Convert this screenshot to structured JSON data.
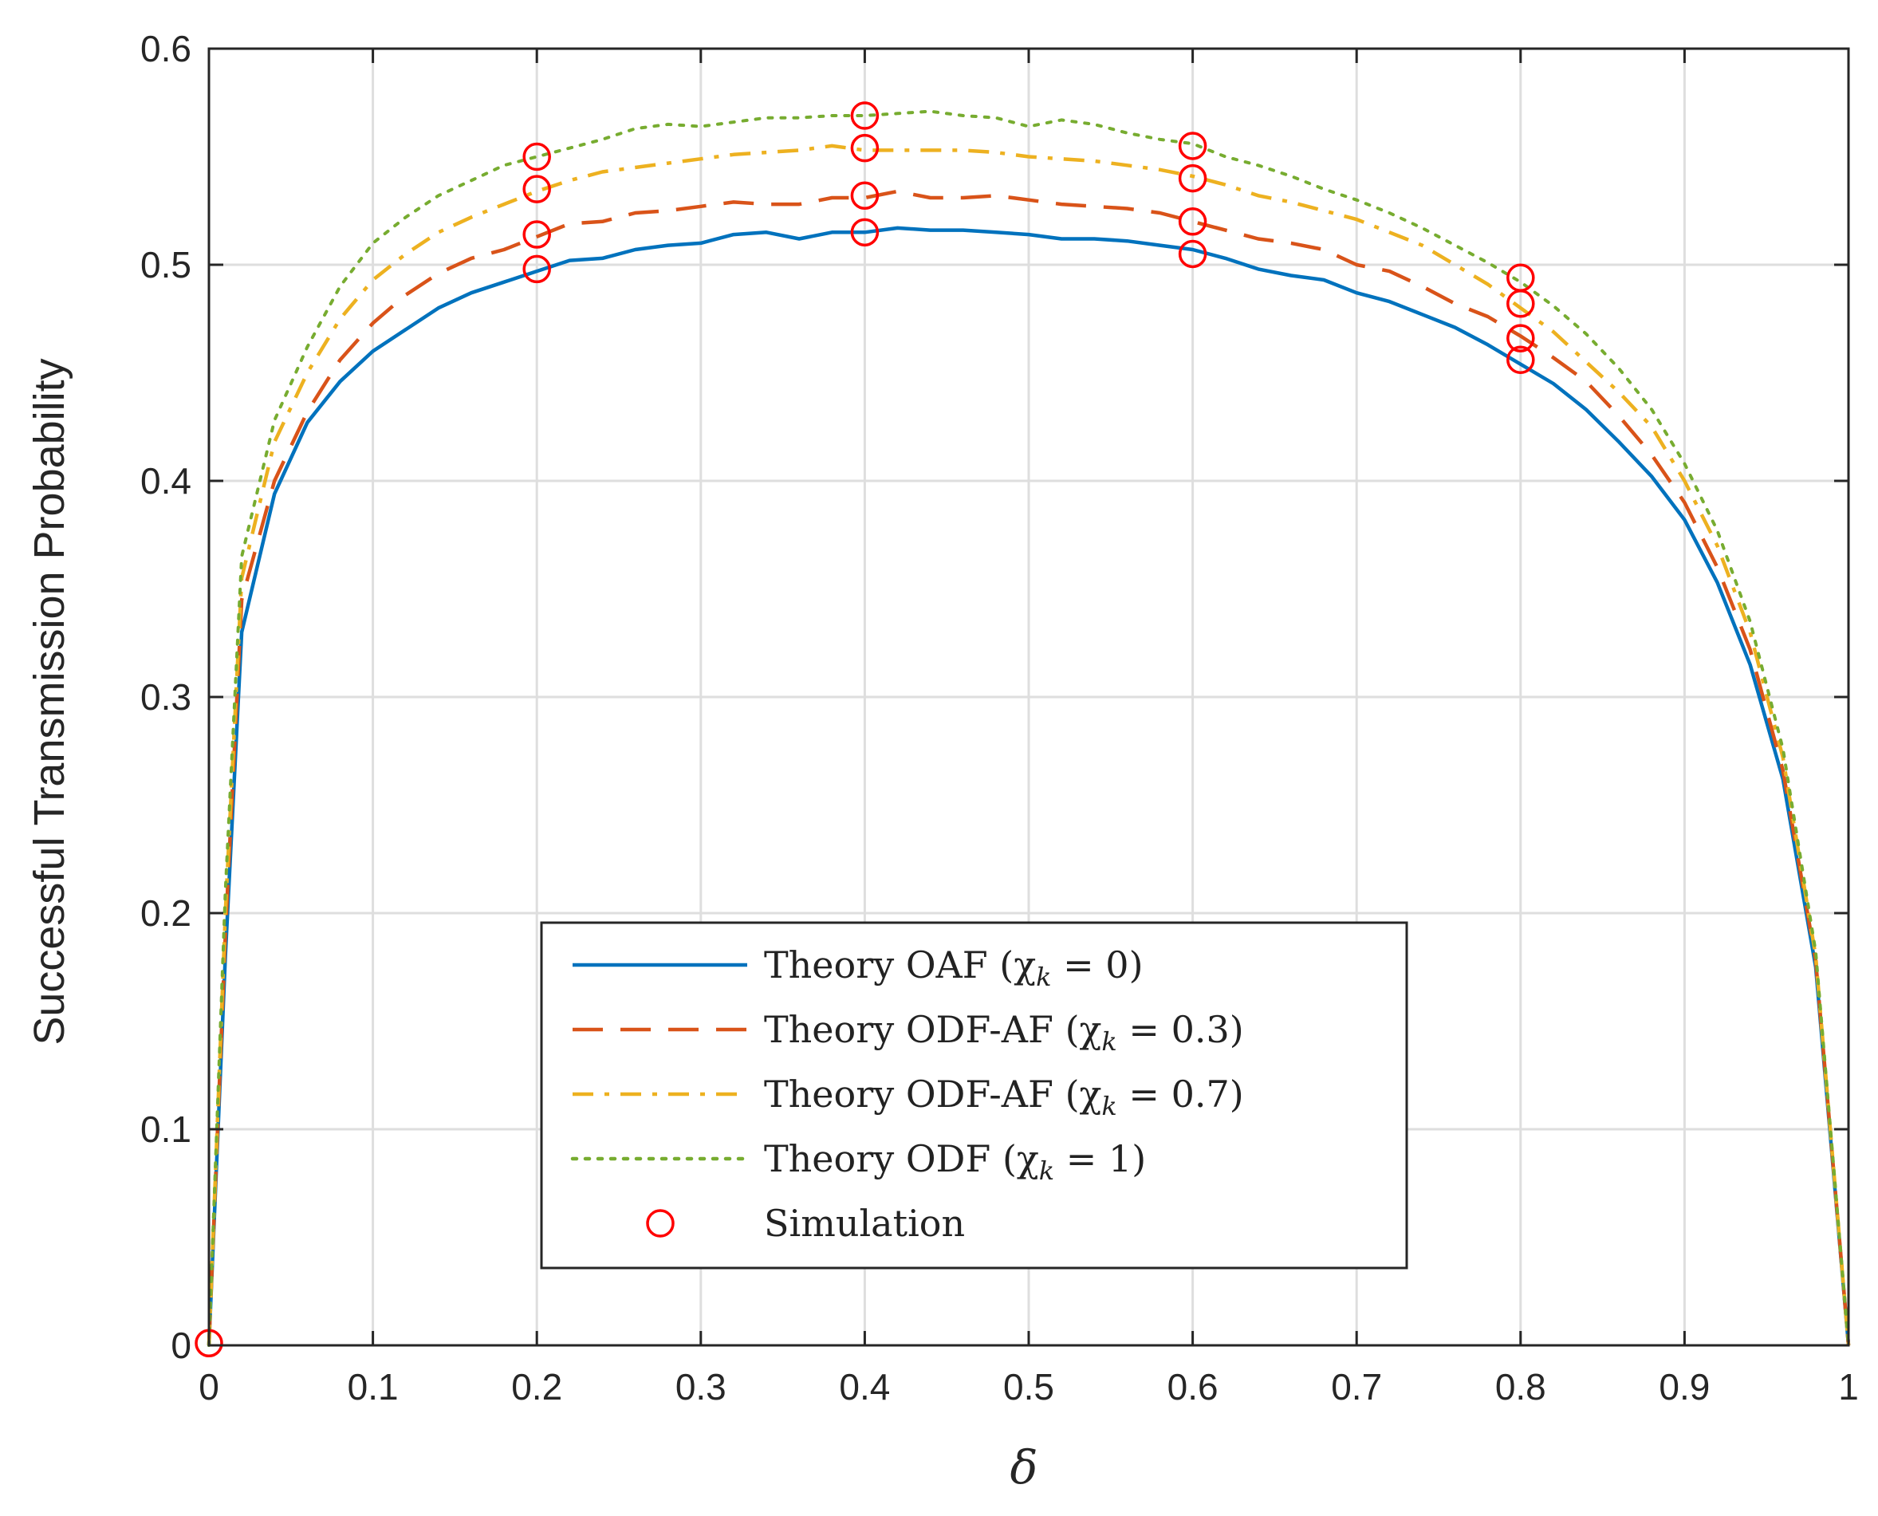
{
  "chart_data": {
    "type": "line",
    "xlabel": "δ",
    "ylabel": "Successful Transmission Probability",
    "xlim": [
      0,
      1
    ],
    "ylim": [
      0,
      0.6
    ],
    "x_ticks": [
      "0",
      "0.1",
      "0.2",
      "0.3",
      "0.4",
      "0.5",
      "0.6",
      "0.7",
      "0.8",
      "0.9",
      "1"
    ],
    "y_ticks": [
      "0",
      "0.1",
      "0.2",
      "0.3",
      "0.4",
      "0.5",
      "0.6"
    ],
    "grid": true,
    "legend_position": "lower-center",
    "series": [
      {
        "name": "Theory OAF (χk = 0)",
        "legend_main": "Theory OAF (χ",
        "legend_sub": "k",
        "legend_tail": " = 0)",
        "style": "solid",
        "color": "#0072BD",
        "x": [
          0,
          0.01,
          0.02,
          0.04,
          0.06,
          0.08,
          0.1,
          0.12,
          0.14,
          0.16,
          0.18,
          0.2,
          0.22,
          0.24,
          0.26,
          0.28,
          0.3,
          0.32,
          0.34,
          0.36,
          0.38,
          0.4,
          0.42,
          0.44,
          0.46,
          0.48,
          0.5,
          0.52,
          0.54,
          0.56,
          0.58,
          0.6,
          0.62,
          0.64,
          0.66,
          0.68,
          0.7,
          0.72,
          0.74,
          0.76,
          0.78,
          0.8,
          0.82,
          0.84,
          0.86,
          0.88,
          0.9,
          0.92,
          0.94,
          0.96,
          0.98,
          1.0
        ],
        "y": [
          0.0,
          0.18,
          0.33,
          0.394,
          0.427,
          0.446,
          0.46,
          0.47,
          0.48,
          0.487,
          0.492,
          0.497,
          0.502,
          0.503,
          0.507,
          0.509,
          0.51,
          0.514,
          0.515,
          0.512,
          0.515,
          0.515,
          0.517,
          0.516,
          0.516,
          0.515,
          0.514,
          0.512,
          0.512,
          0.511,
          0.509,
          0.507,
          0.503,
          0.498,
          0.495,
          0.493,
          0.487,
          0.483,
          0.477,
          0.471,
          0.463,
          0.454,
          0.445,
          0.433,
          0.418,
          0.402,
          0.382,
          0.353,
          0.315,
          0.262,
          0.175,
          0.0
        ]
      },
      {
        "name": "Theory ODF-AF (χk = 0.3)",
        "legend_main": "Theory ODF-AF (χ",
        "legend_sub": "k",
        "legend_tail": " = 0.3)",
        "style": "dashed",
        "color": "#D95319",
        "x": [
          0,
          0.01,
          0.02,
          0.04,
          0.06,
          0.08,
          0.1,
          0.12,
          0.14,
          0.16,
          0.18,
          0.2,
          0.22,
          0.24,
          0.26,
          0.28,
          0.3,
          0.32,
          0.34,
          0.36,
          0.38,
          0.4,
          0.42,
          0.44,
          0.46,
          0.48,
          0.5,
          0.52,
          0.54,
          0.56,
          0.58,
          0.6,
          0.62,
          0.64,
          0.66,
          0.68,
          0.7,
          0.72,
          0.74,
          0.76,
          0.78,
          0.8,
          0.82,
          0.84,
          0.86,
          0.88,
          0.9,
          0.92,
          0.94,
          0.96,
          0.98,
          1.0
        ],
        "y": [
          0.0,
          0.19,
          0.345,
          0.4,
          0.432,
          0.456,
          0.473,
          0.486,
          0.496,
          0.503,
          0.507,
          0.513,
          0.519,
          0.52,
          0.524,
          0.525,
          0.527,
          0.529,
          0.528,
          0.528,
          0.531,
          0.531,
          0.534,
          0.531,
          0.531,
          0.532,
          0.53,
          0.528,
          0.527,
          0.526,
          0.524,
          0.52,
          0.516,
          0.512,
          0.51,
          0.507,
          0.5,
          0.497,
          0.49,
          0.482,
          0.476,
          0.467,
          0.457,
          0.446,
          0.43,
          0.412,
          0.39,
          0.36,
          0.322,
          0.266,
          0.178,
          0.0
        ]
      },
      {
        "name": "Theory ODF-AF (χk = 0.7)",
        "legend_main": "Theory ODF-AF (χ",
        "legend_sub": "k",
        "legend_tail": " = 0.7)",
        "style": "dashdot",
        "color": "#EDB120",
        "x": [
          0,
          0.01,
          0.02,
          0.04,
          0.06,
          0.08,
          0.1,
          0.12,
          0.14,
          0.16,
          0.18,
          0.2,
          0.22,
          0.24,
          0.26,
          0.28,
          0.3,
          0.32,
          0.34,
          0.36,
          0.38,
          0.4,
          0.42,
          0.44,
          0.46,
          0.48,
          0.5,
          0.52,
          0.54,
          0.56,
          0.58,
          0.6,
          0.62,
          0.64,
          0.66,
          0.68,
          0.7,
          0.72,
          0.74,
          0.76,
          0.78,
          0.8,
          0.82,
          0.84,
          0.86,
          0.88,
          0.9,
          0.92,
          0.94,
          0.96,
          0.98,
          1.0
        ],
        "y": [
          0.0,
          0.2,
          0.355,
          0.418,
          0.45,
          0.475,
          0.493,
          0.505,
          0.515,
          0.522,
          0.528,
          0.534,
          0.539,
          0.543,
          0.545,
          0.547,
          0.549,
          0.551,
          0.552,
          0.553,
          0.555,
          0.553,
          0.553,
          0.553,
          0.553,
          0.552,
          0.55,
          0.549,
          0.548,
          0.546,
          0.544,
          0.541,
          0.537,
          0.532,
          0.529,
          0.525,
          0.521,
          0.515,
          0.509,
          0.5,
          0.491,
          0.48,
          0.469,
          0.455,
          0.441,
          0.425,
          0.4,
          0.37,
          0.33,
          0.272,
          0.18,
          0.0
        ]
      },
      {
        "name": "Theory ODF (χk = 1)",
        "legend_main": "Theory ODF (χ",
        "legend_sub": "k",
        "legend_tail": " = 1)",
        "style": "dotted",
        "color": "#77AC30",
        "x": [
          0,
          0.01,
          0.02,
          0.04,
          0.06,
          0.08,
          0.1,
          0.12,
          0.14,
          0.16,
          0.18,
          0.2,
          0.22,
          0.24,
          0.26,
          0.28,
          0.3,
          0.32,
          0.34,
          0.36,
          0.38,
          0.4,
          0.42,
          0.44,
          0.46,
          0.48,
          0.5,
          0.52,
          0.54,
          0.56,
          0.58,
          0.6,
          0.62,
          0.64,
          0.66,
          0.68,
          0.7,
          0.72,
          0.74,
          0.76,
          0.78,
          0.8,
          0.82,
          0.84,
          0.86,
          0.88,
          0.9,
          0.92,
          0.94,
          0.96,
          0.98,
          1.0
        ],
        "y": [
          0.0,
          0.21,
          0.365,
          0.428,
          0.462,
          0.49,
          0.51,
          0.522,
          0.532,
          0.539,
          0.546,
          0.55,
          0.554,
          0.558,
          0.563,
          0.565,
          0.564,
          0.566,
          0.568,
          0.568,
          0.569,
          0.569,
          0.57,
          0.571,
          0.569,
          0.568,
          0.564,
          0.567,
          0.565,
          0.561,
          0.558,
          0.556,
          0.55,
          0.546,
          0.541,
          0.535,
          0.53,
          0.524,
          0.517,
          0.509,
          0.501,
          0.492,
          0.481,
          0.468,
          0.452,
          0.433,
          0.408,
          0.377,
          0.335,
          0.276,
          0.182,
          0.0
        ]
      },
      {
        "name": "Simulation",
        "legend_main": "Simulation",
        "legend_sub": "",
        "legend_tail": "",
        "style": "markers",
        "marker": "circle",
        "color": "#FF0000",
        "x": [
          0,
          0.2,
          0.2,
          0.2,
          0.2,
          0.4,
          0.4,
          0.4,
          0.4,
          0.6,
          0.6,
          0.6,
          0.6,
          0.8,
          0.8,
          0.8,
          0.8
        ],
        "y": [
          0.001,
          0.498,
          0.514,
          0.535,
          0.55,
          0.515,
          0.532,
          0.554,
          0.569,
          0.505,
          0.52,
          0.54,
          0.555,
          0.456,
          0.466,
          0.482,
          0.494
        ]
      }
    ]
  }
}
